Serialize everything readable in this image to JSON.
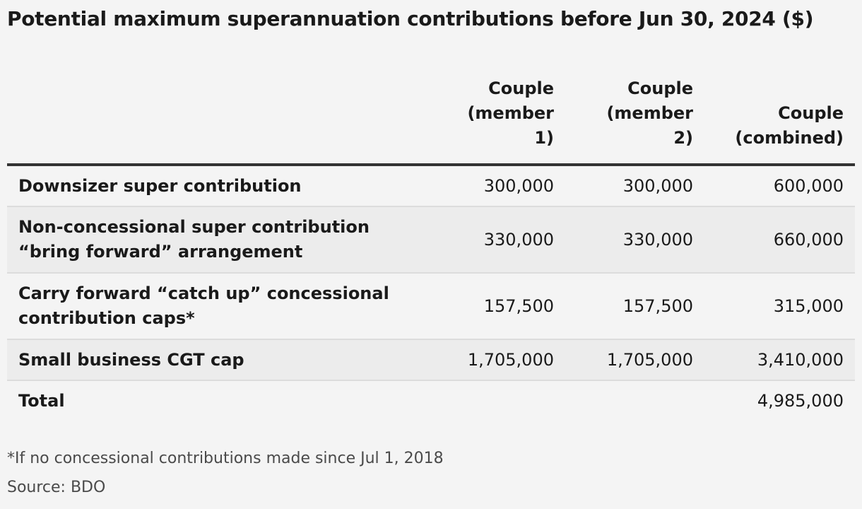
{
  "title": "Potential maximum superannuation contributions before Jun 30, 2024 ($)",
  "footnote": "*If no concessional contributions made since Jul 1, 2018",
  "source": "Source: BDO",
  "chart_data": {
    "type": "table",
    "title": "Potential maximum superannuation contributions before Jun 30, 2024 ($)",
    "columns": [
      {
        "line1": "Couple",
        "line2": "(member",
        "line3": "1)"
      },
      {
        "line1": "Couple",
        "line2": "(member",
        "line3": "2)"
      },
      {
        "line1": "Couple",
        "line2": "(combined)",
        "line3": ""
      }
    ],
    "rows": [
      {
        "label_line1": "Downsizer super contribution",
        "label_line2": "",
        "member1": "300,000",
        "member2": "300,000",
        "combined": "600,000"
      },
      {
        "label_line1": "Non-concessional super contribution",
        "label_line2": "“bring forward” arrangement",
        "member1": "330,000",
        "member2": "330,000",
        "combined": "660,000"
      },
      {
        "label_line1": "Carry forward “catch up” concessional",
        "label_line2": "contribution caps*",
        "member1": "157,500",
        "member2": "157,500",
        "combined": "315,000"
      },
      {
        "label_line1": "Small business CGT cap",
        "label_line2": "",
        "member1": "1,705,000",
        "member2": "1,705,000",
        "combined": "3,410,000"
      },
      {
        "label_line1": "Total",
        "label_line2": "",
        "member1": "",
        "member2": "",
        "combined": "4,985,000"
      }
    ]
  }
}
